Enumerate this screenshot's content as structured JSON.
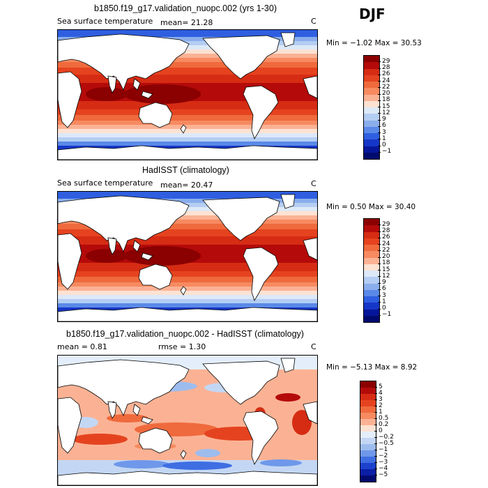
{
  "season": "DJF",
  "panels": [
    {
      "title": "b1850.f19_g17.validation_nuopc.002 (yrs 1-30)",
      "left_label": "Sea surface temperature",
      "stat1": "mean=   21.28",
      "stat2": "",
      "units": "C",
      "minmax": "Min =   −1.02  Max =   30.53",
      "kind": "sst",
      "levels": [
        "29",
        "28",
        "26",
        "24",
        "22",
        "20",
        "18",
        "15",
        "12",
        "9",
        "6",
        "3",
        "1",
        "0",
        "−1"
      ],
      "colors": [
        "#8b0000",
        "#b40a0a",
        "#d62c14",
        "#e5431f",
        "#ef6a3d",
        "#f78a60",
        "#fbb294",
        "#fde2d2",
        "#dde9f8",
        "#b4cdf2",
        "#8aaeec",
        "#5a89e8",
        "#2f5fe0",
        "#1636c8",
        "#06169a",
        "#000a6e"
      ]
    },
    {
      "title": "HadISST (climatology)",
      "left_label": "Sea surface temperature",
      "stat1": "mean=   20.47",
      "stat2": "",
      "units": "C",
      "minmax": "Min =   0.50  Max =   30.40",
      "kind": "sst",
      "levels": [
        "29",
        "28",
        "26",
        "24",
        "22",
        "20",
        "18",
        "15",
        "12",
        "9",
        "6",
        "3",
        "1",
        "0",
        "−1"
      ],
      "colors": [
        "#8b0000",
        "#b40a0a",
        "#d62c14",
        "#e5431f",
        "#ef6a3d",
        "#f78a60",
        "#fbb294",
        "#fde2d2",
        "#dde9f8",
        "#b4cdf2",
        "#8aaeec",
        "#5a89e8",
        "#2f5fe0",
        "#1636c8",
        "#06169a",
        "#000a6e"
      ]
    },
    {
      "title": "b1850.f19_g17.validation_nuopc.002 - HadISST (climatology)",
      "left_label": "",
      "stat1": "mean =    0.81",
      "stat2": "rmse =    1.30",
      "units": "C",
      "minmax": "Min =   −5.13  Max =    8.92",
      "kind": "diff",
      "levels": [
        "5",
        "4",
        "3",
        "2",
        "1",
        "0.5",
        "0.2",
        "0",
        "−0.2",
        "−0.5",
        "−1",
        "−2",
        "−3",
        "−4",
        "−5"
      ],
      "colors": [
        "#8b0000",
        "#b40a0a",
        "#d62c14",
        "#e5431f",
        "#ef6a3d",
        "#f78a60",
        "#fbb294",
        "#fde2d2",
        "#e4eefa",
        "#c3d7f4",
        "#9dbcee",
        "#6f98ea",
        "#3e6ee2",
        "#1c42cc",
        "#0a1fa6",
        "#000a6e"
      ]
    }
  ]
}
